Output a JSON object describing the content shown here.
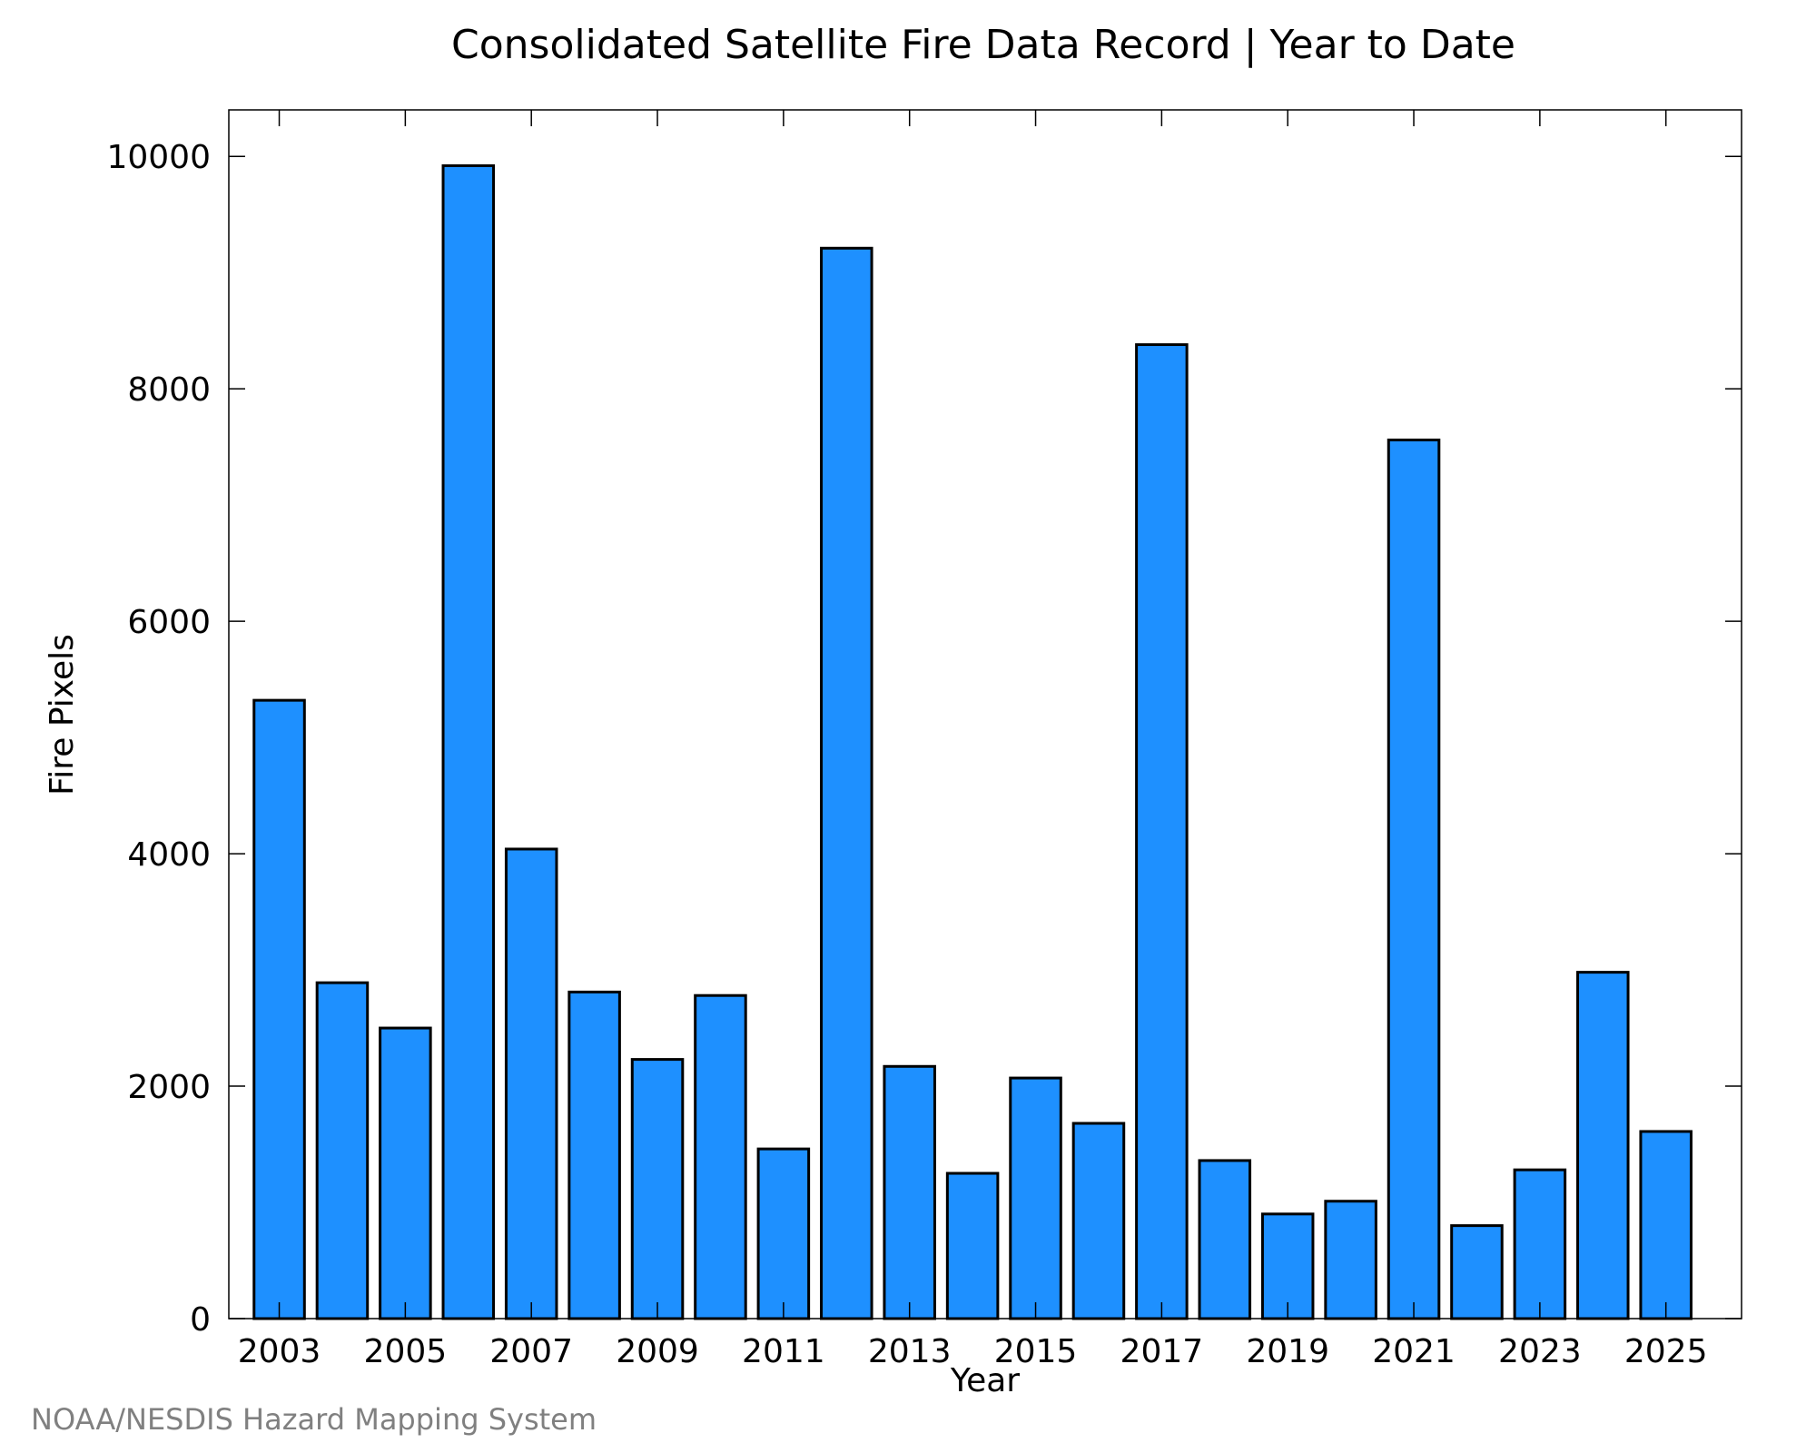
{
  "chart_data": {
    "type": "bar",
    "title": "Consolidated Satellite Fire Data Record | Year to Date",
    "xlabel": "Year",
    "ylabel": "Fire Pixels",
    "credit": "NOAA/NESDIS Hazard Mapping System",
    "bar_color": "#1e90ff",
    "bar_edge_color": "#000000",
    "grid": false,
    "legend": "none",
    "xlim": [
      2002.2,
      2026.2
    ],
    "ylim": [
      0,
      10400
    ],
    "x_ticks": [
      2003,
      2005,
      2007,
      2009,
      2011,
      2013,
      2015,
      2017,
      2019,
      2021,
      2023,
      2025
    ],
    "y_ticks": [
      0,
      2000,
      4000,
      6000,
      8000,
      10000
    ],
    "categories": [
      2003,
      2004,
      2005,
      2006,
      2007,
      2008,
      2009,
      2010,
      2011,
      2012,
      2013,
      2014,
      2015,
      2016,
      2017,
      2018,
      2019,
      2020,
      2021,
      2022,
      2023,
      2024,
      2025
    ],
    "values": [
      5320,
      2890,
      2500,
      9920,
      4040,
      2810,
      2230,
      2780,
      1460,
      9210,
      2170,
      1250,
      2070,
      1680,
      8380,
      1360,
      900,
      1010,
      7560,
      800,
      1280,
      2980,
      1610
    ]
  }
}
